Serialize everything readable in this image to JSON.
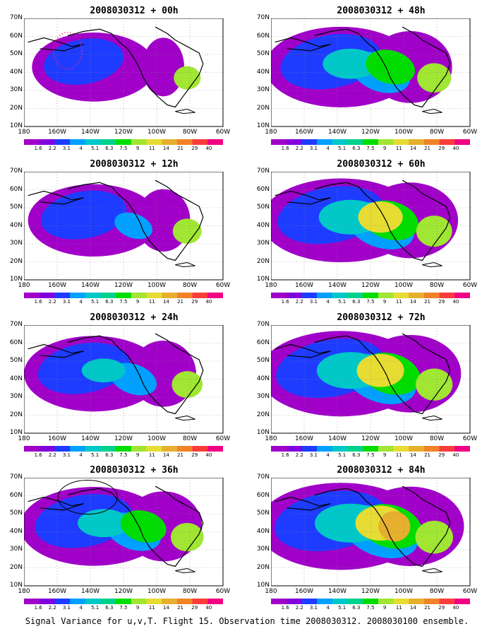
{
  "panels": [
    {
      "id": "p00",
      "title": "2008030312 + 00h",
      "intensity": 0.35
    },
    {
      "id": "p48",
      "title": "2008030312 + 48h",
      "intensity": 0.7
    },
    {
      "id": "p12",
      "title": "2008030312 + 12h",
      "intensity": 0.45
    },
    {
      "id": "p60",
      "title": "2008030312 + 60h",
      "intensity": 0.8
    },
    {
      "id": "p24",
      "title": "2008030312 + 24h",
      "intensity": 0.55
    },
    {
      "id": "p72",
      "title": "2008030312 + 72h",
      "intensity": 0.85
    },
    {
      "id": "p36",
      "title": "2008030312 + 36h",
      "intensity": 0.65
    },
    {
      "id": "p84",
      "title": "2008030312 + 84h",
      "intensity": 0.9
    }
  ],
  "lat_labels": [
    "70N",
    "60N",
    "50N",
    "40N",
    "30N",
    "20N",
    "10N"
  ],
  "lon_labels": [
    "180",
    "160W",
    "140W",
    "120W",
    "100W",
    "80W",
    "60W"
  ],
  "colorbar": {
    "levels": [
      "1.6",
      "2.2",
      "3.1",
      "4",
      "5.1",
      "6.3",
      "7.5",
      "9",
      "11",
      "14",
      "21",
      "29",
      "40"
    ],
    "colors": [
      "#a000c8",
      "#8200dc",
      "#1e3cff",
      "#00a0ff",
      "#00c8c8",
      "#00d28c",
      "#00dc00",
      "#a0e632",
      "#e6dc32",
      "#e6af2d",
      "#f08228",
      "#fa3c3c",
      "#f00082"
    ]
  },
  "footer": "Signal Variance for u,v,T. Flight 15. Observation time 2008030312. 2008030100 ensemble."
}
